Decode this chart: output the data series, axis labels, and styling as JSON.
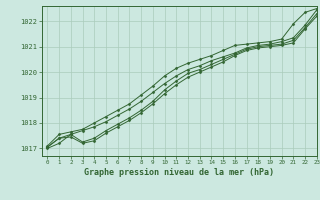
{
  "bg_color": "#cce8e0",
  "grid_color": "#aaccbb",
  "line_color": "#336633",
  "title": "Graphe pression niveau de la mer (hPa)",
  "xlim": [
    -0.5,
    23
  ],
  "ylim": [
    1016.7,
    1022.6
  ],
  "yticks": [
    1017,
    1018,
    1019,
    1020,
    1021,
    1022
  ],
  "xticks": [
    0,
    1,
    2,
    3,
    4,
    5,
    6,
    7,
    8,
    9,
    10,
    11,
    12,
    13,
    14,
    15,
    16,
    17,
    18,
    19,
    20,
    21,
    22,
    23
  ],
  "series": [
    [
      1017.0,
      1017.2,
      1017.55,
      1017.7,
      1017.85,
      1018.05,
      1018.3,
      1018.55,
      1018.85,
      1019.2,
      1019.55,
      1019.85,
      1020.1,
      1020.25,
      1020.45,
      1020.6,
      1020.75,
      1020.95,
      1021.05,
      1021.1,
      1021.2,
      1021.35,
      1021.85,
      1022.45
    ],
    [
      1017.05,
      1017.4,
      1017.55,
      1017.25,
      1017.4,
      1017.7,
      1017.95,
      1018.2,
      1018.5,
      1018.85,
      1019.3,
      1019.65,
      1019.95,
      1020.1,
      1020.3,
      1020.5,
      1020.7,
      1020.9,
      1021.0,
      1021.05,
      1021.1,
      1021.25,
      1021.75,
      1022.3
    ],
    [
      1017.05,
      1017.4,
      1017.45,
      1017.2,
      1017.3,
      1017.6,
      1017.85,
      1018.1,
      1018.4,
      1018.75,
      1019.15,
      1019.5,
      1019.8,
      1020.0,
      1020.2,
      1020.4,
      1020.65,
      1020.85,
      1020.95,
      1021.0,
      1021.05,
      1021.15,
      1021.7,
      1022.2
    ],
    [
      1017.1,
      1017.55,
      1017.65,
      1017.75,
      1018.0,
      1018.25,
      1018.5,
      1018.75,
      1019.1,
      1019.45,
      1019.85,
      1020.15,
      1020.35,
      1020.5,
      1020.65,
      1020.85,
      1021.05,
      1021.1,
      1021.15,
      1021.2,
      1021.3,
      1021.9,
      1022.35,
      1022.5
    ]
  ]
}
